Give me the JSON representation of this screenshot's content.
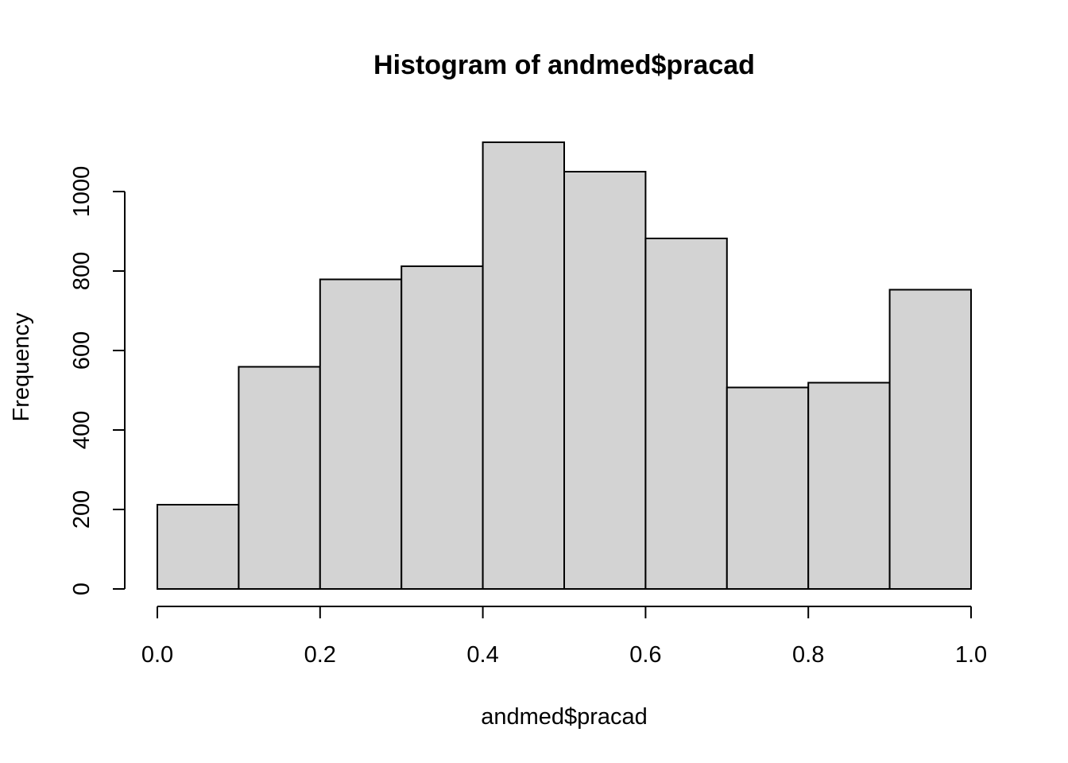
{
  "chart_data": {
    "type": "bar",
    "title": "Histogram of andmed$pracad",
    "xlabel": "andmed$pracad",
    "ylabel": "Frequency",
    "bin_edges": [
      0.0,
      0.1,
      0.2,
      0.3,
      0.4,
      0.5,
      0.6,
      0.7,
      0.8,
      0.9,
      1.0
    ],
    "values": [
      212,
      559,
      779,
      812,
      1124,
      1050,
      882,
      507,
      519,
      753
    ],
    "xlim": [
      0.0,
      1.0
    ],
    "ylim": [
      0,
      1124
    ],
    "x_ticks": [
      0.0,
      0.2,
      0.4,
      0.6,
      0.8,
      1.0
    ],
    "x_tick_labels": [
      "0.0",
      "0.2",
      "0.4",
      "0.6",
      "0.8",
      "1.0"
    ],
    "y_ticks": [
      0,
      200,
      400,
      600,
      800,
      1000
    ],
    "y_tick_labels": [
      "0",
      "200",
      "400",
      "600",
      "800",
      "1000"
    ],
    "grid": false,
    "legend": "none",
    "bar_fill": "#d3d3d3",
    "bar_stroke": "#000000"
  }
}
